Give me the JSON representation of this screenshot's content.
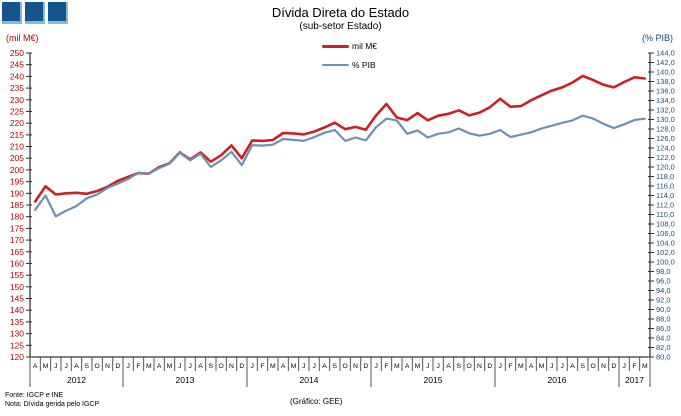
{
  "header": {
    "title": "Dívida Direta do Estado",
    "subtitle": "(sub-setor  Estado)"
  },
  "chart_data": {
    "type": "line",
    "title": "Dívida Direta do Estado",
    "subtitle": "(sub-setor Estado)",
    "grid": false,
    "legend_position": "top-center-inside",
    "left_axis": {
      "label": "(mil M€)",
      "min": 120,
      "max": 250,
      "step": 5,
      "color": "#c00000"
    },
    "right_axis": {
      "label": "(% PIB)",
      "min": 80,
      "max": 144,
      "step": 2,
      "color": "#1f4e79",
      "decimal_separator": "comma"
    },
    "x_years": [
      {
        "label": "2012",
        "months": [
          "A",
          "M",
          "J",
          "J",
          "A",
          "S",
          "O",
          "N",
          "D"
        ]
      },
      {
        "label": "2013",
        "months": [
          "J",
          "F",
          "M",
          "A",
          "M",
          "J",
          "J",
          "A",
          "S",
          "O",
          "N",
          "D"
        ]
      },
      {
        "label": "2014",
        "months": [
          "J",
          "F",
          "M",
          "A",
          "M",
          "J",
          "J",
          "A",
          "S",
          "O",
          "N",
          "D"
        ]
      },
      {
        "label": "2015",
        "months": [
          "J",
          "F",
          "M",
          "A",
          "M",
          "J",
          "J",
          "A",
          "S",
          "O",
          "N",
          "D"
        ]
      },
      {
        "label": "2016",
        "months": [
          "J",
          "F",
          "M",
          "A",
          "M",
          "J",
          "J",
          "A",
          "S",
          "O",
          "N",
          "D"
        ]
      },
      {
        "label": "2017",
        "months": [
          "J",
          "F",
          "M"
        ]
      }
    ],
    "series": [
      {
        "name": "mil M€",
        "axis": "left",
        "color": "#cb2026",
        "values": [
          186.5,
          193.0,
          189.5,
          190.0,
          190.2,
          189.8,
          191.0,
          192.8,
          195.3,
          197.0,
          198.7,
          198.4,
          201.2,
          202.8,
          207.5,
          204.5,
          207.5,
          203.5,
          206.3,
          210.5,
          205.0,
          212.6,
          212.4,
          212.8,
          215.8,
          215.6,
          215.2,
          216.4,
          218.2,
          220.2,
          217.4,
          218.4,
          217.2,
          223.4,
          228.2,
          222.4,
          221.3,
          224.3,
          221.2,
          223.2,
          224.0,
          225.5,
          223.3,
          224.5,
          226.8,
          230.4,
          227.0,
          227.3,
          229.8,
          231.9,
          233.9,
          235.3,
          237.4,
          240.2,
          238.4,
          236.4,
          235.3,
          237.6,
          239.6,
          239.1
        ]
      },
      {
        "name": "% PIB",
        "axis": "right",
        "color": "#6f8fb4",
        "values": [
          111.0,
          114.0,
          109.6,
          110.8,
          111.8,
          113.4,
          114.2,
          115.6,
          116.5,
          117.5,
          118.8,
          118.6,
          119.8,
          120.7,
          123.0,
          121.4,
          122.8,
          120.0,
          121.4,
          123.2,
          120.4,
          124.6,
          124.5,
          124.7,
          125.9,
          125.7,
          125.5,
          126.3,
          127.2,
          127.8,
          125.5,
          126.2,
          125.6,
          128.4,
          130.2,
          129.8,
          127.0,
          127.7,
          126.2,
          127.0,
          127.3,
          128.1,
          127.1,
          126.6,
          127.0,
          127.8,
          126.3,
          126.8,
          127.3,
          128.1,
          128.7,
          129.3,
          129.8,
          130.8,
          130.2,
          129.1,
          128.2,
          129.0,
          129.9,
          130.2
        ]
      }
    ]
  },
  "footer": {
    "fonte": "Fonte: IGCP e INE",
    "nota": "Nota: Dívida gerida pelo IGCP",
    "grafico": "(Gráfico: GEE)"
  }
}
